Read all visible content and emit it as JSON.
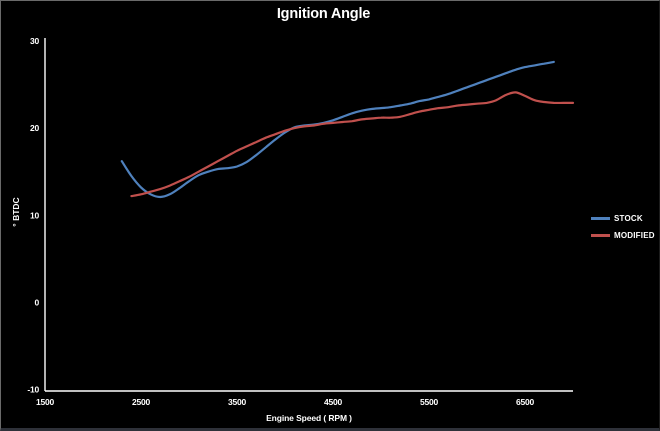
{
  "chart_data": {
    "type": "line",
    "title": "Ignition Angle",
    "xlabel": "Engine Speed ( RPM )",
    "ylabel": "° BTDC",
    "xlim": [
      1500,
      7000
    ],
    "ylim": [
      -10,
      30
    ],
    "x_ticks": [
      "1500",
      "2500",
      "3500",
      "4500",
      "5500",
      "6500"
    ],
    "y_ticks": [
      "30",
      "20",
      "10",
      "0",
      "-10"
    ],
    "grid": false,
    "legend_position": "right-middle",
    "background": "#000000",
    "text_color": "#ffffff",
    "axis_color": "#ffffff",
    "series": [
      {
        "name": "STOCK",
        "color": "#4f81bd",
        "points": [
          [
            2300,
            16.2
          ],
          [
            2400,
            14.5
          ],
          [
            2500,
            13.2
          ],
          [
            2600,
            12.4
          ],
          [
            2700,
            12.1
          ],
          [
            2800,
            12.4
          ],
          [
            2900,
            13.1
          ],
          [
            3000,
            13.9
          ],
          [
            3100,
            14.6
          ],
          [
            3200,
            15.0
          ],
          [
            3300,
            15.3
          ],
          [
            3400,
            15.4
          ],
          [
            3500,
            15.6
          ],
          [
            3600,
            16.1
          ],
          [
            3700,
            16.9
          ],
          [
            3800,
            17.8
          ],
          [
            3900,
            18.7
          ],
          [
            4000,
            19.5
          ],
          [
            4100,
            20.1
          ],
          [
            4200,
            20.3
          ],
          [
            4300,
            20.4
          ],
          [
            4400,
            20.6
          ],
          [
            4500,
            20.9
          ],
          [
            4600,
            21.3
          ],
          [
            4700,
            21.7
          ],
          [
            4800,
            22.0
          ],
          [
            4900,
            22.2
          ],
          [
            5000,
            22.3
          ],
          [
            5100,
            22.4
          ],
          [
            5200,
            22.6
          ],
          [
            5300,
            22.8
          ],
          [
            5400,
            23.1
          ],
          [
            5500,
            23.3
          ],
          [
            5600,
            23.6
          ],
          [
            5700,
            23.9
          ],
          [
            5800,
            24.3
          ],
          [
            5900,
            24.7
          ],
          [
            6000,
            25.1
          ],
          [
            6100,
            25.5
          ],
          [
            6200,
            25.9
          ],
          [
            6300,
            26.3
          ],
          [
            6400,
            26.7
          ],
          [
            6500,
            27.0
          ],
          [
            6600,
            27.2
          ],
          [
            6700,
            27.4
          ],
          [
            6800,
            27.6
          ]
        ]
      },
      {
        "name": "MODIFIED",
        "color": "#c0504d",
        "points": [
          [
            2400,
            12.2
          ],
          [
            2500,
            12.4
          ],
          [
            2600,
            12.7
          ],
          [
            2700,
            13.0
          ],
          [
            2800,
            13.4
          ],
          [
            2900,
            13.9
          ],
          [
            3000,
            14.4
          ],
          [
            3100,
            15.0
          ],
          [
            3200,
            15.6
          ],
          [
            3300,
            16.2
          ],
          [
            3400,
            16.8
          ],
          [
            3500,
            17.4
          ],
          [
            3600,
            17.9
          ],
          [
            3700,
            18.4
          ],
          [
            3800,
            18.9
          ],
          [
            3900,
            19.3
          ],
          [
            4000,
            19.7
          ],
          [
            4100,
            20.0
          ],
          [
            4200,
            20.2
          ],
          [
            4300,
            20.3
          ],
          [
            4400,
            20.5
          ],
          [
            4500,
            20.6
          ],
          [
            4600,
            20.7
          ],
          [
            4700,
            20.8
          ],
          [
            4800,
            21.0
          ],
          [
            4900,
            21.1
          ],
          [
            5000,
            21.2
          ],
          [
            5100,
            21.2
          ],
          [
            5200,
            21.3
          ],
          [
            5300,
            21.6
          ],
          [
            5400,
            21.9
          ],
          [
            5500,
            22.1
          ],
          [
            5600,
            22.3
          ],
          [
            5700,
            22.4
          ],
          [
            5800,
            22.6
          ],
          [
            5900,
            22.7
          ],
          [
            6000,
            22.8
          ],
          [
            6100,
            22.9
          ],
          [
            6200,
            23.2
          ],
          [
            6300,
            23.8
          ],
          [
            6400,
            24.1
          ],
          [
            6500,
            23.7
          ],
          [
            6600,
            23.2
          ],
          [
            6700,
            23.0
          ],
          [
            6800,
            22.9
          ],
          [
            6900,
            22.9
          ],
          [
            7000,
            22.9
          ]
        ]
      }
    ]
  }
}
